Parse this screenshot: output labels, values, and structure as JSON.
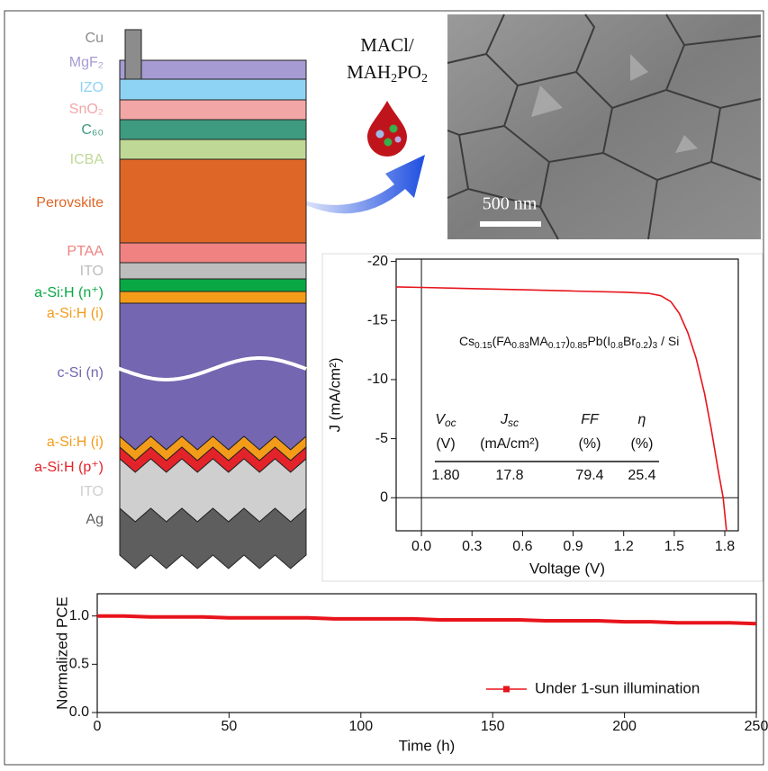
{
  "diagram": {
    "layers": [
      {
        "label": "Cu",
        "color": "#8c8c8c"
      },
      {
        "label": "MgF₂",
        "color": "#a79bd3"
      },
      {
        "label": "IZO",
        "color": "#8fd3f4"
      },
      {
        "label": "SnO₂",
        "color": "#f3a6a6"
      },
      {
        "label": "C₆₀",
        "color": "#3e9b80"
      },
      {
        "label": "ICBA",
        "color": "#bfd896"
      },
      {
        "label": "Perovskite",
        "color": "#de6627"
      },
      {
        "label": "PTAA",
        "color": "#f08282"
      },
      {
        "label": "ITO",
        "color": "#bdbdbd"
      },
      {
        "label": "a-Si:H (n⁺)",
        "color": "#0aa845"
      },
      {
        "label": "a-Si:H (i)",
        "color": "#f39c1a"
      },
      {
        "label": "c-Si (n)",
        "color": "#7466b0"
      },
      {
        "label": "a-Si:H (i)",
        "color": "#f39c1a"
      },
      {
        "label": "a-Si:H (p⁺)",
        "color": "#e3232a"
      },
      {
        "label": "ITO",
        "color": "#cfcfcf"
      },
      {
        "label": "Ag",
        "color": "#5e5e5e"
      }
    ]
  },
  "treatment": {
    "line1": "MACl/",
    "line2": [
      "MAH",
      "2",
      "PO",
      "2"
    ]
  },
  "sem": {
    "scale_bar": "500 nm"
  },
  "chart_data": [
    {
      "type": "line",
      "x_label": "Voltage (V)",
      "y_label": "J (mA/cm²)",
      "x": [
        -0.15,
        0,
        0.3,
        0.6,
        0.9,
        1.2,
        1.35,
        1.42,
        1.48,
        1.53,
        1.58,
        1.63,
        1.68,
        1.72,
        1.76,
        1.79,
        1.81
      ],
      "series": [
        {
          "color": "#e8141c",
          "values": [
            -17.85,
            -17.8,
            -17.7,
            -17.6,
            -17.5,
            -17.4,
            -17.3,
            -17.1,
            -16.6,
            -15.6,
            -14.0,
            -11.8,
            -8.8,
            -5.8,
            -2.4,
            0,
            2.8
          ]
        }
      ],
      "xlim": [
        -0.15,
        1.88
      ],
      "ylim": [
        2.8,
        -20.2
      ],
      "xticks": [
        {
          "value": 0,
          "label": "0.0"
        },
        0.3,
        0.6,
        0.9,
        1.2,
        1.5,
        1.8
      ],
      "yticks": [
        -20,
        -15,
        -10,
        -5,
        0
      ],
      "zero_lines": true,
      "annotation_parts": [
        "Cs",
        "0.15",
        "(FA",
        "0.83",
        "MA",
        "0.17",
        ")",
        "0.85",
        "Pb(I",
        "0.8",
        "Br",
        "0.2",
        ")",
        "3",
        " / Si"
      ],
      "table": {
        "headers": [
          [
            "V",
            "oc"
          ],
          [
            "J",
            "sc"
          ],
          [
            "FF"
          ],
          [
            "η"
          ]
        ],
        "units": [
          "(V)",
          "(mA/cm²)",
          "(%)",
          "(%)"
        ],
        "values": [
          "1.80",
          "17.8",
          "79.4",
          "25.4"
        ]
      }
    },
    {
      "type": "line",
      "x_label": "Time (h)",
      "y_label": "Normalized PCE",
      "x": [
        0,
        10,
        20,
        30,
        40,
        50,
        60,
        70,
        80,
        90,
        100,
        110,
        120,
        130,
        140,
        150,
        160,
        170,
        180,
        190,
        200,
        210,
        220,
        230,
        240,
        250
      ],
      "series": [
        {
          "name": "Under 1-sun illumination",
          "color": "#e8141c",
          "values": [
            1.0,
            1.0,
            0.99,
            0.99,
            0.99,
            0.98,
            0.98,
            0.98,
            0.98,
            0.97,
            0.97,
            0.97,
            0.97,
            0.96,
            0.96,
            0.96,
            0.96,
            0.95,
            0.95,
            0.95,
            0.94,
            0.94,
            0.93,
            0.93,
            0.93,
            0.92
          ]
        }
      ],
      "xlim": [
        0,
        250
      ],
      "ylim": [
        0,
        1.23
      ],
      "xticks": [
        0,
        50,
        100,
        150,
        200,
        250
      ],
      "yticks": [
        {
          "value": 0,
          "label": "0.0"
        },
        0.5,
        {
          "value": 1,
          "label": "1.0"
        }
      ],
      "legend": "lower right"
    }
  ]
}
